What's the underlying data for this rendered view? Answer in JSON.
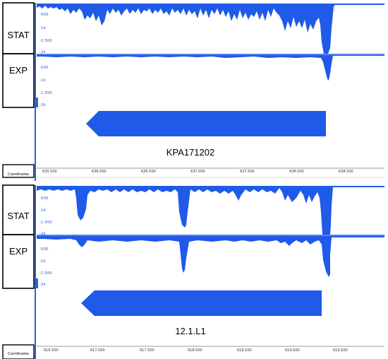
{
  "panels": [
    {
      "tracks": [
        {
          "label": "STAT",
          "ticks": [
            "-500",
            "-1k",
            "-1.500",
            "-2k"
          ]
        },
        {
          "label": "EXP",
          "ticks": [
            "-500",
            "-1k",
            "-1.500",
            "-2k"
          ]
        }
      ],
      "gene_name": "KPA171202",
      "coordinates_label": "Coordinates",
      "axis_ticks": [
        "635.500",
        "636.000",
        "636.500",
        "637.000",
        "637.500",
        "638.000",
        "638.500"
      ]
    },
    {
      "tracks": [
        {
          "label": "STAT",
          "ticks": [
            "-500",
            "-1k",
            "-1.500",
            "-2k"
          ]
        },
        {
          "label": "EXP",
          "ticks": [
            "-500",
            "-1k",
            "-1.500",
            "-2k"
          ]
        }
      ],
      "gene_name": "12.1.L1",
      "coordinates_label": "Coordinates",
      "axis_ticks": [
        "616.500",
        "617.000",
        "617.500",
        "618.000",
        "618.500",
        "619.000",
        "619.500"
      ]
    }
  ],
  "colors": {
    "signal": "#1f5ae8",
    "axis": "#2a62d8",
    "frame": "#000000"
  }
}
